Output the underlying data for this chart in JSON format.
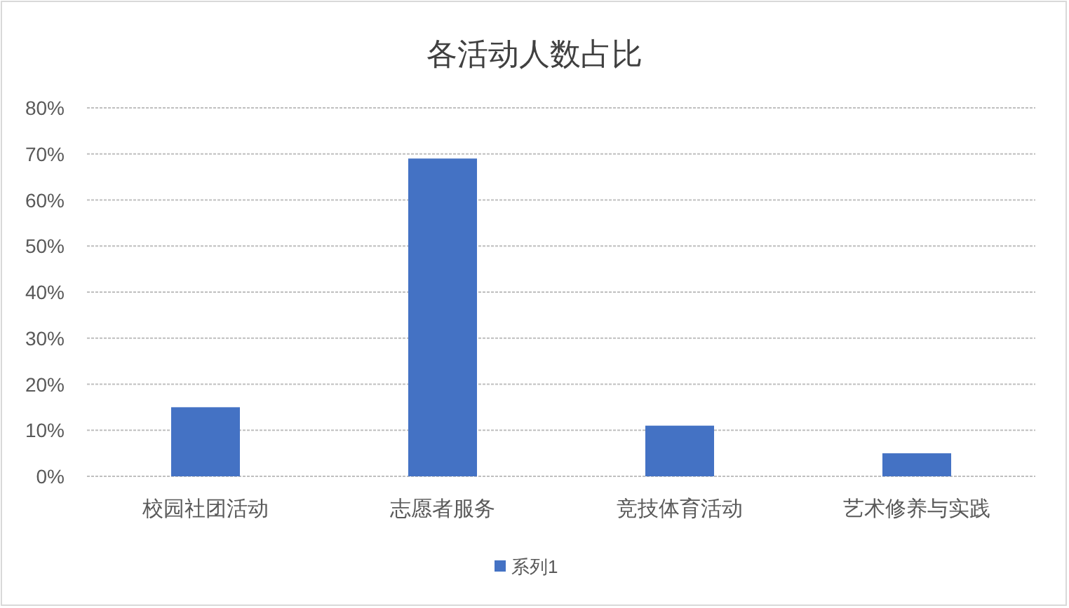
{
  "chart_data": {
    "type": "bar",
    "title": "各活动人数占比",
    "categories": [
      "校园社团活动",
      "志愿者服务",
      "竞技体育活动",
      "艺术修养与实践"
    ],
    "series": [
      {
        "name": "系列1",
        "color": "#4472c4",
        "values": [
          15,
          69,
          11,
          5
        ]
      }
    ],
    "ylim": [
      0,
      80
    ],
    "yticks": [
      {
        "value": 0,
        "label": "0%"
      },
      {
        "value": 10,
        "label": "10%"
      },
      {
        "value": 20,
        "label": "20%"
      },
      {
        "value": 30,
        "label": "30%"
      },
      {
        "value": 40,
        "label": "40%"
      },
      {
        "value": 50,
        "label": "50%"
      },
      {
        "value": 60,
        "label": "60%"
      },
      {
        "value": 70,
        "label": "70%"
      },
      {
        "value": 80,
        "label": "80%"
      }
    ],
    "grid": "y",
    "legend": "bottom"
  }
}
